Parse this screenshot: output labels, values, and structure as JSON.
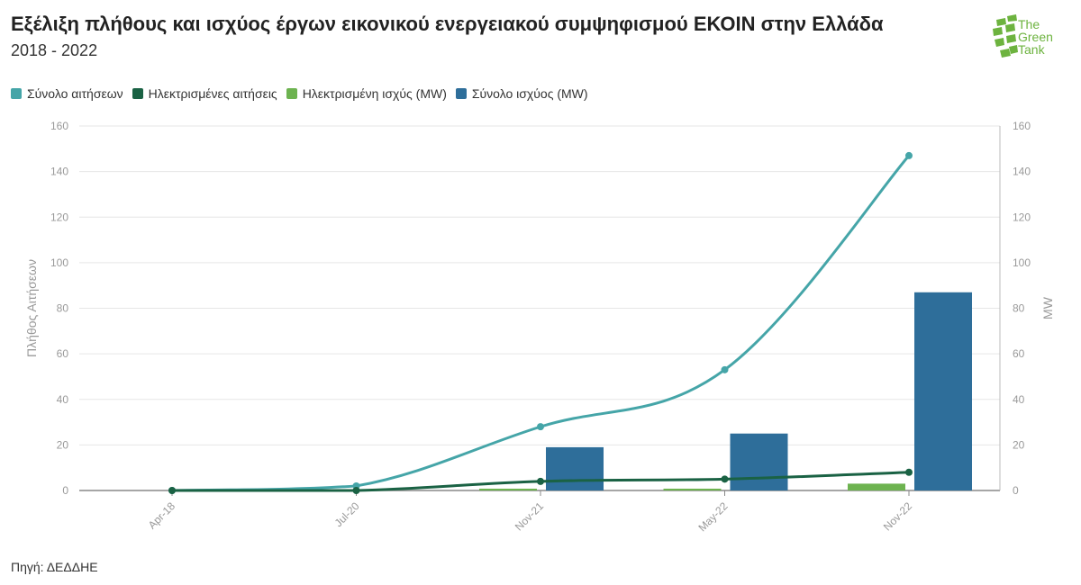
{
  "header": {
    "title": "Εξέλιξη πλήθους και ισχύος έργων εικονικού ενεργειακού συμψηφισμού ΕΚΟΙΝ στην Ελλάδα",
    "subtitle": "2018 - 2022"
  },
  "logo": {
    "line1": "The",
    "line2": "Green",
    "line3": "Tank"
  },
  "footer": {
    "source": "Πηγή: ΔΕΔΔΗΕ"
  },
  "colors": {
    "total_requests": "#45a5a8",
    "electrified_requests": "#1a6244",
    "electrified_power": "#6db350",
    "total_power": "#2e6e9a",
    "grid": "#e6e6e6",
    "axis_text": "#999999"
  },
  "chart_data": {
    "type": "bar",
    "categories": [
      "Apr-18",
      "Jul-20",
      "Nov-21",
      "May-22",
      "Nov-22"
    ],
    "ylabel": "Πλήθος Αιτήσεων",
    "y2label": "MW",
    "ylim": [
      0,
      160
    ],
    "y2lim": [
      0,
      160
    ],
    "yticks": [
      0,
      20,
      40,
      60,
      80,
      100,
      120,
      140,
      160
    ],
    "legend_position": "top-left",
    "grid": true,
    "series": [
      {
        "name": "Σύνολο αιτήσεων",
        "type": "line",
        "axis": "left",
        "values": [
          0,
          2,
          28,
          53,
          147
        ]
      },
      {
        "name": "Ηλεκτρισμένες αιτήσεις",
        "type": "line",
        "axis": "left",
        "values": [
          0,
          0,
          4,
          5,
          8
        ]
      },
      {
        "name": "Ηλεκτρισμένη ισχύς (MW)",
        "type": "bar",
        "axis": "right",
        "values": [
          0,
          0,
          0.8,
          0.8,
          3
        ]
      },
      {
        "name": "Σύνολο ισχύος (MW)",
        "type": "bar",
        "axis": "right",
        "values": [
          0,
          0,
          19,
          25,
          87
        ]
      }
    ]
  }
}
